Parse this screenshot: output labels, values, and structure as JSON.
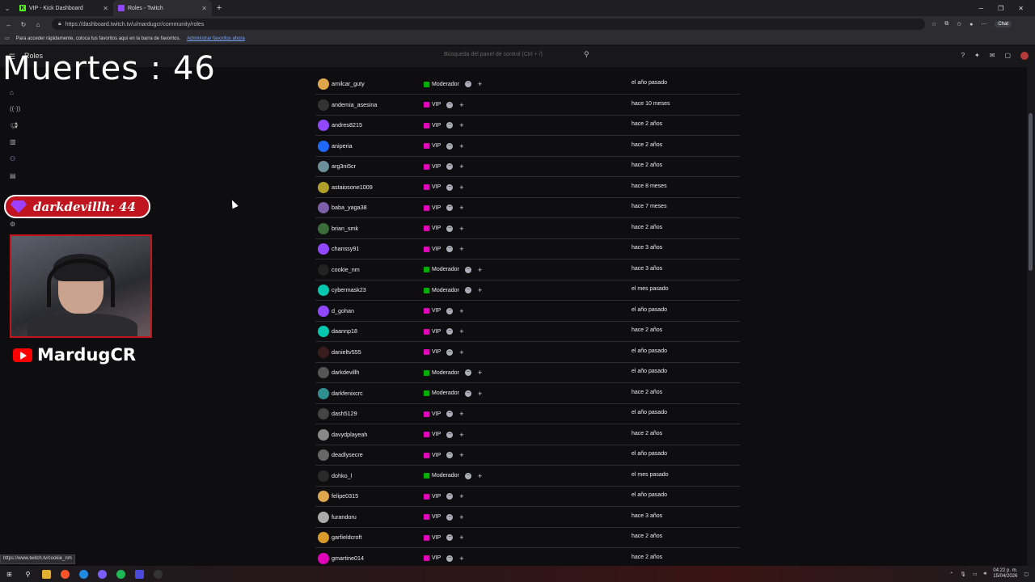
{
  "browser": {
    "tabs": [
      {
        "title": "VIP - Kick Dashboard",
        "icon": "kick-icon"
      },
      {
        "title": "Roles - Twitch",
        "icon": "twitch-icon"
      }
    ],
    "url": "https://dashboard.twitch.tv/u/mardugcr/community/roles",
    "chat_label": "Chat",
    "favorites_text": "Para acceder rápidamente, coloca tus favoritos aquí en la barra de favoritos.",
    "favorites_link": "Administrar favoritos ahora",
    "status_url": "https://www.twitch.tv/cookie_nm"
  },
  "dashboard": {
    "title": "Roles",
    "search_placeholder": "Búsqueda del panel de control (Ctrl + /)"
  },
  "overlay": {
    "deaths": "Muertes : 46",
    "subscriber": "darkdevillh: 44",
    "channel": "MardugCR"
  },
  "colors": {
    "moderator": "#00ad03",
    "vip": "#e005b9",
    "accent": "#9147ff"
  },
  "rows": [
    {
      "user": "amilcar_guty",
      "role": "Moderador",
      "date": "el año pasado",
      "avatar": "#e0a64c"
    },
    {
      "user": "andemia_asesina",
      "role": "VIP",
      "date": "hace 10 meses",
      "avatar": "#333"
    },
    {
      "user": "andres8215",
      "role": "VIP",
      "date": "hace 2 años",
      "avatar": "#9146ff"
    },
    {
      "user": "aniperia",
      "role": "VIP",
      "date": "hace 2 años",
      "avatar": "#1f69ff"
    },
    {
      "user": "arg3ni5cr",
      "role": "VIP",
      "date": "hace 2 años",
      "avatar": "#6b8f9a"
    },
    {
      "user": "astaiosone1009",
      "role": "VIP",
      "date": "hace 8 meses",
      "avatar": "#b0a02a"
    },
    {
      "user": "baba_yaga38",
      "role": "VIP",
      "date": "hace 7 meses",
      "avatar": "#7c5fa8"
    },
    {
      "user": "brian_smk",
      "role": "VIP",
      "date": "hace 2 años",
      "avatar": "#3b6d3b"
    },
    {
      "user": "chanssy91",
      "role": "VIP",
      "date": "hace 3 años",
      "avatar": "#9146ff"
    },
    {
      "user": "cookie_nm",
      "role": "Moderador",
      "date": "hace 3 años",
      "avatar": "#222"
    },
    {
      "user": "cybermask23",
      "role": "Moderador",
      "date": "el mes pasado",
      "avatar": "#00c8af"
    },
    {
      "user": "d_gohan",
      "role": "VIP",
      "date": "el año pasado",
      "avatar": "#9146ff"
    },
    {
      "user": "daannp18",
      "role": "VIP",
      "date": "hace 2 años",
      "avatar": "#00c8af"
    },
    {
      "user": "danieltv555",
      "role": "VIP",
      "date": "el año pasado",
      "avatar": "#3a1c1c"
    },
    {
      "user": "darkdevillh",
      "role": "Moderador",
      "date": "el año pasado",
      "avatar": "#555"
    },
    {
      "user": "darkfenixcrc",
      "role": "Moderador",
      "date": "hace 2 años",
      "avatar": "#2f8f8f"
    },
    {
      "user": "dash5129",
      "role": "VIP",
      "date": "el año pasado",
      "avatar": "#444"
    },
    {
      "user": "davydplayeah",
      "role": "VIP",
      "date": "hace 2 años",
      "avatar": "#888"
    },
    {
      "user": "deadlysecre",
      "role": "VIP",
      "date": "el año pasado",
      "avatar": "#666"
    },
    {
      "user": "dohko_l",
      "role": "Moderador",
      "date": "el mes pasado",
      "avatar": "#2a2a2a"
    },
    {
      "user": "felipe0315",
      "role": "VIP",
      "date": "el año pasado",
      "avatar": "#e0a64c"
    },
    {
      "user": "furandoru",
      "role": "VIP",
      "date": "hace 3 años",
      "avatar": "#aaa"
    },
    {
      "user": "garfieldcroft",
      "role": "VIP",
      "date": "hace 2 años",
      "avatar": "#d89a2a"
    },
    {
      "user": "gmartine014",
      "role": "VIP",
      "date": "hace 2 años",
      "avatar": "#e005b9"
    }
  ],
  "system": {
    "time": "04:22 p. m.",
    "date": "15/04/2026"
  }
}
